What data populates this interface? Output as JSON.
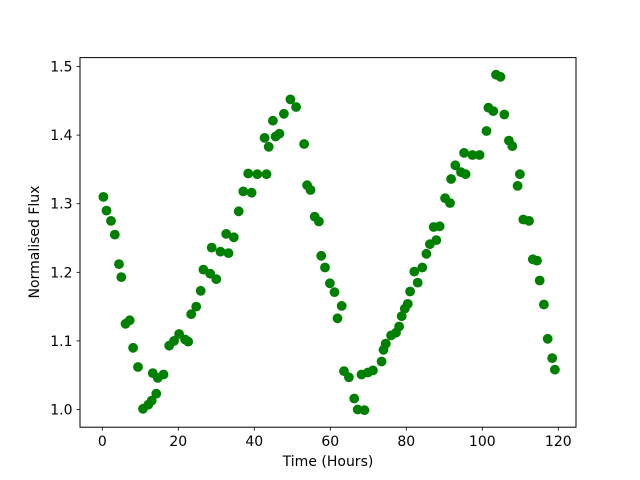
{
  "figure": {
    "background": "#ffffff"
  },
  "chart_data": {
    "type": "scatter",
    "title": "",
    "xlabel": "Time (Hours)",
    "ylabel": "Normalised Flux",
    "legend": null,
    "grid": false,
    "marker": {
      "shape": "circle",
      "color": "#008000",
      "radius_px": 4.9
    },
    "spine_color": "#000000",
    "xlim": [
      -5.87,
      124.66
    ],
    "ylim": [
      0.9742,
      1.513
    ],
    "xtick_values": [
      0,
      20,
      40,
      60,
      80,
      100,
      120
    ],
    "xtick_labels": [
      "0",
      "20",
      "40",
      "60",
      "80",
      "100",
      "120"
    ],
    "ytick_values": [
      1.0,
      1.1,
      1.2,
      1.3,
      1.4,
      1.5
    ],
    "ytick_labels": [
      "1.0",
      "1.1",
      "1.2",
      "1.3",
      "1.4",
      "1.5"
    ],
    "points": [
      [
        0.3,
        1.31
      ],
      [
        1.1,
        1.29
      ],
      [
        2.3,
        1.275
      ],
      [
        3.3,
        1.255
      ],
      [
        4.4,
        1.212
      ],
      [
        5.0,
        1.193
      ],
      [
        6.1,
        1.125
      ],
      [
        7.2,
        1.13
      ],
      [
        8.1,
        1.09
      ],
      [
        9.4,
        1.062
      ],
      [
        10.7,
        1.001
      ],
      [
        12.1,
        1.007
      ],
      [
        13.0,
        1.013
      ],
      [
        13.3,
        1.053
      ],
      [
        14.2,
        1.023
      ],
      [
        14.6,
        1.046
      ],
      [
        16.1,
        1.051
      ],
      [
        17.6,
        1.093
      ],
      [
        18.9,
        1.1
      ],
      [
        20.2,
        1.11
      ],
      [
        21.8,
        1.102
      ],
      [
        22.6,
        1.099
      ],
      [
        23.4,
        1.139
      ],
      [
        24.7,
        1.15
      ],
      [
        25.9,
        1.173
      ],
      [
        26.6,
        1.204
      ],
      [
        28.4,
        1.198
      ],
      [
        30.0,
        1.19
      ],
      [
        28.8,
        1.236
      ],
      [
        31.1,
        1.23
      ],
      [
        33.2,
        1.228
      ],
      [
        32.6,
        1.256
      ],
      [
        34.6,
        1.251
      ],
      [
        35.9,
        1.289
      ],
      [
        37.1,
        1.318
      ],
      [
        39.3,
        1.316
      ],
      [
        38.4,
        1.344
      ],
      [
        40.8,
        1.343
      ],
      [
        43.2,
        1.343
      ],
      [
        42.7,
        1.396
      ],
      [
        43.8,
        1.383
      ],
      [
        44.9,
        1.421
      ],
      [
        45.6,
        1.398
      ],
      [
        46.6,
        1.402
      ],
      [
        47.8,
        1.431
      ],
      [
        49.5,
        1.452
      ],
      [
        51.0,
        1.441
      ],
      [
        53.1,
        1.387
      ],
      [
        53.9,
        1.327
      ],
      [
        54.8,
        1.32
      ],
      [
        55.9,
        1.281
      ],
      [
        57.0,
        1.274
      ],
      [
        57.6,
        1.224
      ],
      [
        58.6,
        1.207
      ],
      [
        59.9,
        1.184
      ],
      [
        61.1,
        1.171
      ],
      [
        61.9,
        1.133
      ],
      [
        63.0,
        1.151
      ],
      [
        63.6,
        1.056
      ],
      [
        64.9,
        1.047
      ],
      [
        66.3,
        1.016
      ],
      [
        67.2,
        1.0
      ],
      [
        68.2,
        1.051
      ],
      [
        69.0,
        0.999
      ],
      [
        69.9,
        1.054
      ],
      [
        71.2,
        1.057
      ],
      [
        73.5,
        1.07
      ],
      [
        74.0,
        1.087
      ],
      [
        74.6,
        1.096
      ],
      [
        76.0,
        1.108
      ],
      [
        77.3,
        1.112
      ],
      [
        78.1,
        1.121
      ],
      [
        78.8,
        1.136
      ],
      [
        79.6,
        1.147
      ],
      [
        80.4,
        1.154
      ],
      [
        81.0,
        1.172
      ],
      [
        82.1,
        1.201
      ],
      [
        83.0,
        1.185
      ],
      [
        84.2,
        1.207
      ],
      [
        85.3,
        1.227
      ],
      [
        86.2,
        1.241
      ],
      [
        87.2,
        1.266
      ],
      [
        87.9,
        1.247
      ],
      [
        88.8,
        1.267
      ],
      [
        90.2,
        1.308
      ],
      [
        91.5,
        1.301
      ],
      [
        91.8,
        1.336
      ],
      [
        92.9,
        1.356
      ],
      [
        94.4,
        1.346
      ],
      [
        95.2,
        1.374
      ],
      [
        95.6,
        1.343
      ],
      [
        97.4,
        1.371
      ],
      [
        99.3,
        1.371
      ],
      [
        101.1,
        1.406
      ],
      [
        101.6,
        1.44
      ],
      [
        102.9,
        1.435
      ],
      [
        103.6,
        1.488
      ],
      [
        104.8,
        1.485
      ],
      [
        105.8,
        1.43
      ],
      [
        107.0,
        1.392
      ],
      [
        107.9,
        1.384
      ],
      [
        109.3,
        1.326
      ],
      [
        109.9,
        1.343
      ],
      [
        110.8,
        1.277
      ],
      [
        112.3,
        1.275
      ],
      [
        113.3,
        1.219
      ],
      [
        114.4,
        1.217
      ],
      [
        115.1,
        1.188
      ],
      [
        116.2,
        1.153
      ],
      [
        117.2,
        1.103
      ],
      [
        118.4,
        1.075
      ],
      [
        119.1,
        1.058
      ]
    ]
  }
}
